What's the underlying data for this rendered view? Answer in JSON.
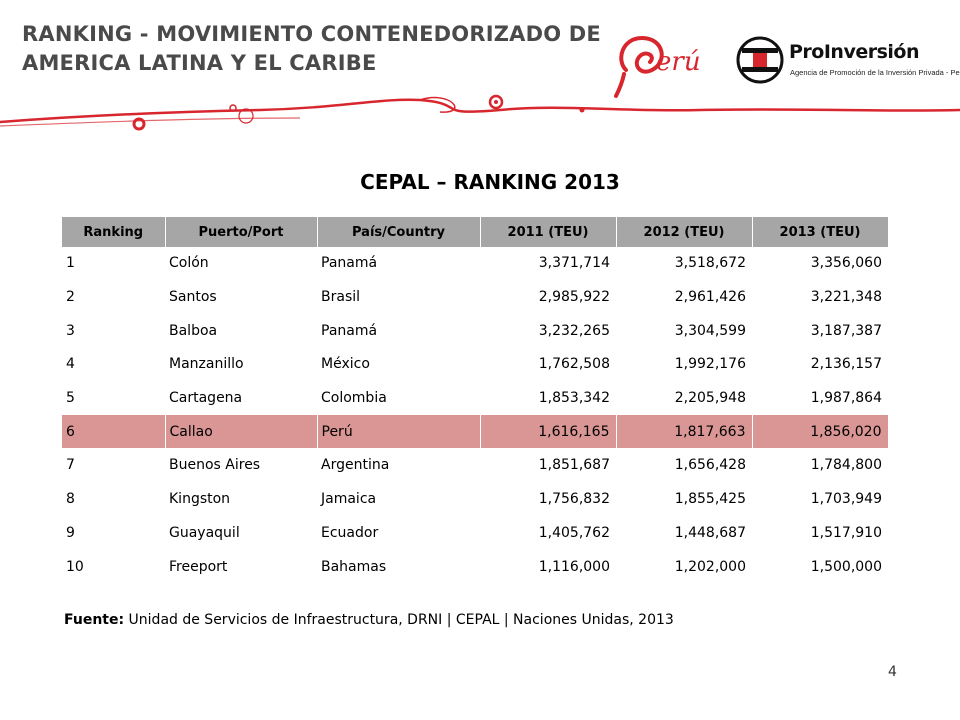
{
  "header": {
    "title": "RANKING - MOVIMIENTO CONTENEDORIZADO DE AMERICA LATINA Y EL CARIBE"
  },
  "logos": {
    "peru": "Perú",
    "proinversion_name": "ProInversión",
    "proinversion_tagline": "Agencia de Promoción de la Inversión Privada - Perú"
  },
  "colors": {
    "brand_red": "#d8262e",
    "header_gray": "#a6a6a6",
    "highlight_row": "#d99694",
    "title_gray": "#4a4a4a"
  },
  "subtitle": "CEPAL – RANKING 2013",
  "table": {
    "headers": [
      "Ranking",
      "Puerto/Port",
      "País/Country",
      "2011 (TEU)",
      "2012 (TEU)",
      "2013 (TEU)"
    ],
    "rows": [
      [
        "1",
        "Colón",
        "Panamá",
        "3,371,714",
        "3,518,672",
        "3,356,060"
      ],
      [
        "2",
        "Santos",
        "Brasil",
        "2,985,922",
        "2,961,426",
        "3,221,348"
      ],
      [
        "3",
        "Balboa",
        "Panamá",
        "3,232,265",
        "3,304,599",
        "3,187,387"
      ],
      [
        "4",
        "Manzanillo",
        "México",
        "1,762,508",
        "1,992,176",
        "2,136,157"
      ],
      [
        "5",
        "Cartagena",
        "Colombia",
        "1,853,342",
        "2,205,948",
        "1,987,864"
      ],
      [
        "6",
        "Callao",
        "Perú",
        "1,616,165",
        "1,817,663",
        "1,856,020"
      ],
      [
        "7",
        "Buenos Aires",
        "Argentina",
        "1,851,687",
        "1,656,428",
        "1,784,800"
      ],
      [
        "8",
        "Kingston",
        "Jamaica",
        "1,756,832",
        "1,855,425",
        "1,703,949"
      ],
      [
        "9",
        "Guayaquil",
        "Ecuador",
        "1,405,762",
        "1,448,687",
        "1,517,910"
      ],
      [
        "10",
        "Freeport",
        "Bahamas",
        "1,116,000",
        "1,202,000",
        "1,500,000"
      ]
    ],
    "highlighted_row": 6
  },
  "source": {
    "label": "Fuente:",
    "text": " Unidad de Servicios de Infraestructura, DRNI | CEPAL | Naciones Unidas, 2013"
  },
  "page_number": "4"
}
